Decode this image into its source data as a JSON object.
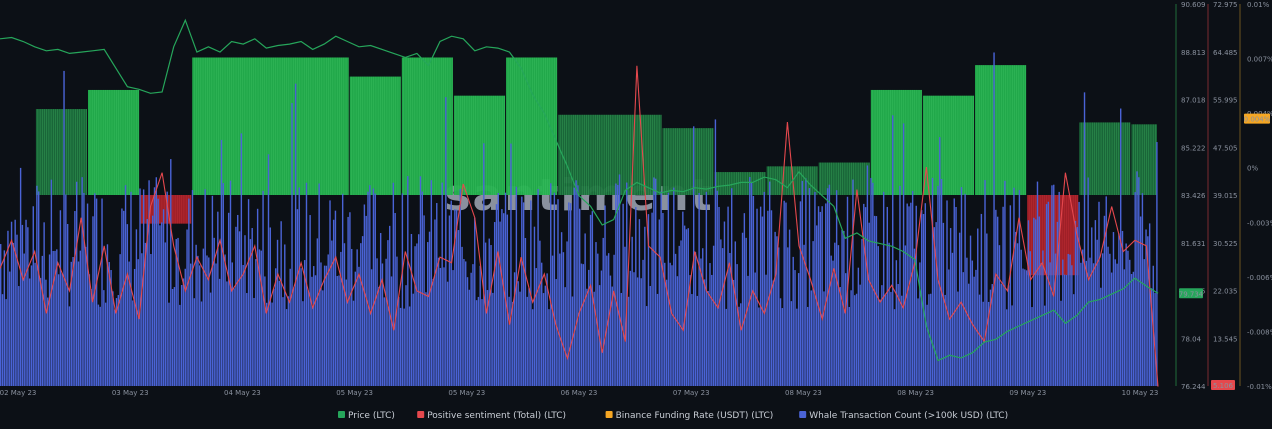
{
  "chart_data": {
    "type": "bar",
    "watermark": "santiment",
    "x_axis": {
      "tick_labels": [
        "02 May 23",
        "03 May 23",
        "04 May 23",
        "05 May 23",
        "05 May 23",
        "06 May 23",
        "07 May 23",
        "08 May 23",
        "08 May 23",
        "09 May 23",
        "10 May 23"
      ],
      "range": [
        0,
        1
      ]
    },
    "axes": {
      "price": {
        "ticks": [
          "90.609",
          "88.813",
          "87.018",
          "85.222",
          "83.426",
          "81.631",
          "79.835",
          "78.04",
          "76.244"
        ],
        "range": [
          76.244,
          90.609
        ],
        "current_value": "79.734",
        "current_color": "#26a65b"
      },
      "sentiment": {
        "ticks": [
          "72.975",
          "64.485",
          "55.995",
          "47.505",
          "39.015",
          "30.525",
          "22.035",
          "13.545",
          "5.106"
        ],
        "range": [
          5.106,
          72.975
        ],
        "current_value": "5.106",
        "current_color": "#e5484d"
      },
      "funding": {
        "ticks": [
          "0.01%",
          "0.007%",
          "0.004%",
          "0%",
          "-0.003%",
          "-0.006%",
          "-0.008%",
          "-0.01%"
        ],
        "range": [
          -0.01,
          0.01
        ],
        "current_value": "0.004%",
        "current_value_num": 0.004,
        "current_color": "#f5a623"
      }
    },
    "series": [
      {
        "name": "Binance Funding Rate (USDT) (LTC)",
        "color": "#f5a623",
        "type": "funding-bars",
        "blocks": [
          {
            "x0": 0.031,
            "x1": 0.076,
            "value": 0.0045
          },
          {
            "x0": 0.076,
            "x1": 0.121,
            "value": 0.0055
          },
          {
            "x0": 0.121,
            "x1": 0.166,
            "value": -0.0015
          },
          {
            "x0": 0.166,
            "x1": 0.302,
            "value": 0.0072
          },
          {
            "x0": 0.302,
            "x1": 0.347,
            "value": 0.0062
          },
          {
            "x0": 0.347,
            "x1": 0.392,
            "value": 0.0072
          },
          {
            "x0": 0.392,
            "x1": 0.437,
            "value": 0.0052
          },
          {
            "x0": 0.437,
            "x1": 0.482,
            "value": 0.0072
          },
          {
            "x0": 0.482,
            "x1": 0.572,
            "value": 0.0042
          },
          {
            "x0": 0.572,
            "x1": 0.617,
            "value": 0.0035
          },
          {
            "x0": 0.617,
            "x1": 0.662,
            "value": 0.0012
          },
          {
            "x0": 0.662,
            "x1": 0.707,
            "value": 0.0015
          },
          {
            "x0": 0.707,
            "x1": 0.752,
            "value": 0.0017
          },
          {
            "x0": 0.752,
            "x1": 0.797,
            "value": 0.0055
          },
          {
            "x0": 0.797,
            "x1": 0.842,
            "value": 0.0052
          },
          {
            "x0": 0.842,
            "x1": 0.887,
            "value": 0.0068
          },
          {
            "x0": 0.887,
            "x1": 0.932,
            "value": -0.0042
          },
          {
            "x0": 0.932,
            "x1": 0.977,
            "value": 0.0038
          },
          {
            "x0": 0.977,
            "x1": 1.022,
            "value": 0.0037
          },
          {
            "x0": 1.022,
            "x1": 1.067,
            "value": 0.0025
          }
        ]
      },
      {
        "name": "Whale Transaction Count (>100k USD) (LTC)",
        "color": "#4a63d6",
        "type": "whale-bars",
        "count": 640,
        "baseline": 0.2,
        "amplitude": 0.35
      },
      {
        "name": "Positive sentiment (Total) (LTC)",
        "color": "#e5484d",
        "type": "sentiment-line",
        "points": [
          [
            0,
            26
          ],
          [
            0.01,
            31
          ],
          [
            0.02,
            24
          ],
          [
            0.03,
            29
          ],
          [
            0.04,
            18
          ],
          [
            0.05,
            27
          ],
          [
            0.06,
            22
          ],
          [
            0.07,
            35
          ],
          [
            0.08,
            20
          ],
          [
            0.09,
            30
          ],
          [
            0.1,
            18
          ],
          [
            0.11,
            25
          ],
          [
            0.12,
            17
          ],
          [
            0.13,
            37
          ],
          [
            0.14,
            43
          ],
          [
            0.15,
            30
          ],
          [
            0.16,
            22
          ],
          [
            0.17,
            28
          ],
          [
            0.18,
            24
          ],
          [
            0.19,
            31
          ],
          [
            0.2,
            22
          ],
          [
            0.21,
            25
          ],
          [
            0.22,
            30
          ],
          [
            0.23,
            18
          ],
          [
            0.24,
            25
          ],
          [
            0.25,
            20
          ],
          [
            0.26,
            27
          ],
          [
            0.27,
            19
          ],
          [
            0.28,
            24
          ],
          [
            0.29,
            28
          ],
          [
            0.3,
            20
          ],
          [
            0.31,
            25
          ],
          [
            0.32,
            18
          ],
          [
            0.33,
            24
          ],
          [
            0.34,
            15
          ],
          [
            0.35,
            29
          ],
          [
            0.36,
            22
          ],
          [
            0.37,
            21
          ],
          [
            0.38,
            28
          ],
          [
            0.39,
            27
          ],
          [
            0.4,
            41
          ],
          [
            0.41,
            35
          ],
          [
            0.42,
            18
          ],
          [
            0.43,
            29
          ],
          [
            0.44,
            16
          ],
          [
            0.45,
            28
          ],
          [
            0.46,
            20
          ],
          [
            0.47,
            25
          ],
          [
            0.48,
            16
          ],
          [
            0.49,
            10
          ],
          [
            0.5,
            18
          ],
          [
            0.51,
            23
          ],
          [
            0.52,
            11
          ],
          [
            0.53,
            22
          ],
          [
            0.54,
            13
          ],
          [
            0.55,
            62
          ],
          [
            0.56,
            30
          ],
          [
            0.57,
            28
          ],
          [
            0.58,
            18
          ],
          [
            0.59,
            15
          ],
          [
            0.6,
            29
          ],
          [
            0.61,
            22
          ],
          [
            0.62,
            19
          ],
          [
            0.63,
            27
          ],
          [
            0.64,
            15
          ],
          [
            0.65,
            22
          ],
          [
            0.66,
            18
          ],
          [
            0.67,
            25
          ],
          [
            0.68,
            52
          ],
          [
            0.69,
            30
          ],
          [
            0.7,
            24
          ],
          [
            0.71,
            17
          ],
          [
            0.72,
            26
          ],
          [
            0.73,
            18
          ],
          [
            0.74,
            40
          ],
          [
            0.75,
            24
          ],
          [
            0.76,
            20
          ],
          [
            0.77,
            23
          ],
          [
            0.78,
            19
          ],
          [
            0.79,
            27
          ],
          [
            0.8,
            44
          ],
          [
            0.81,
            24
          ],
          [
            0.82,
            17
          ],
          [
            0.83,
            20
          ],
          [
            0.84,
            16
          ],
          [
            0.85,
            13
          ],
          [
            0.86,
            25
          ],
          [
            0.87,
            22
          ],
          [
            0.88,
            35
          ],
          [
            0.89,
            24
          ],
          [
            0.9,
            27
          ],
          [
            0.91,
            21
          ],
          [
            0.92,
            43
          ],
          [
            0.93,
            32
          ],
          [
            0.94,
            24
          ],
          [
            0.95,
            28
          ],
          [
            0.96,
            37
          ],
          [
            0.97,
            29
          ],
          [
            0.98,
            31
          ],
          [
            0.99,
            30
          ],
          [
            1.0,
            5
          ]
        ]
      },
      {
        "name": "Price (LTC)",
        "color": "#26a65b",
        "type": "price-line",
        "points": [
          [
            0,
            89.3
          ],
          [
            0.01,
            89.35
          ],
          [
            0.02,
            89.2
          ],
          [
            0.03,
            89.0
          ],
          [
            0.04,
            88.85
          ],
          [
            0.05,
            88.9
          ],
          [
            0.06,
            88.75
          ],
          [
            0.07,
            88.8
          ],
          [
            0.08,
            88.85
          ],
          [
            0.09,
            88.9
          ],
          [
            0.1,
            88.2
          ],
          [
            0.11,
            87.5
          ],
          [
            0.12,
            87.4
          ],
          [
            0.13,
            87.25
          ],
          [
            0.14,
            87.3
          ],
          [
            0.15,
            89.0
          ],
          [
            0.16,
            90.0
          ],
          [
            0.17,
            88.8
          ],
          [
            0.18,
            89.0
          ],
          [
            0.19,
            88.8
          ],
          [
            0.2,
            89.2
          ],
          [
            0.21,
            89.1
          ],
          [
            0.22,
            89.3
          ],
          [
            0.23,
            88.95
          ],
          [
            0.24,
            89.05
          ],
          [
            0.25,
            89.1
          ],
          [
            0.26,
            89.2
          ],
          [
            0.27,
            88.9
          ],
          [
            0.28,
            89.1
          ],
          [
            0.29,
            89.4
          ],
          [
            0.3,
            89.2
          ],
          [
            0.31,
            89.0
          ],
          [
            0.32,
            89.05
          ],
          [
            0.33,
            88.9
          ],
          [
            0.34,
            88.75
          ],
          [
            0.35,
            88.6
          ],
          [
            0.36,
            88.75
          ],
          [
            0.37,
            88.3
          ],
          [
            0.38,
            89.2
          ],
          [
            0.39,
            89.4
          ],
          [
            0.4,
            89.3
          ],
          [
            0.41,
            88.85
          ],
          [
            0.42,
            89.0
          ],
          [
            0.43,
            88.95
          ],
          [
            0.44,
            88.8
          ],
          [
            0.45,
            88.2
          ],
          [
            0.46,
            87.2
          ],
          [
            0.47,
            86.5
          ],
          [
            0.48,
            85.5
          ],
          [
            0.49,
            84.5
          ],
          [
            0.5,
            83.4
          ],
          [
            0.51,
            83.0
          ],
          [
            0.52,
            82.3
          ],
          [
            0.53,
            82.5
          ],
          [
            0.54,
            83.6
          ],
          [
            0.55,
            83.9
          ],
          [
            0.56,
            83.7
          ],
          [
            0.57,
            83.5
          ],
          [
            0.58,
            83.6
          ],
          [
            0.59,
            83.55
          ],
          [
            0.6,
            83.7
          ],
          [
            0.61,
            83.65
          ],
          [
            0.62,
            83.75
          ],
          [
            0.63,
            83.8
          ],
          [
            0.64,
            83.9
          ],
          [
            0.65,
            83.9
          ],
          [
            0.66,
            84.1
          ],
          [
            0.67,
            84.0
          ],
          [
            0.68,
            83.7
          ],
          [
            0.69,
            84.3
          ],
          [
            0.7,
            83.8
          ],
          [
            0.71,
            83.4
          ],
          [
            0.72,
            83.0
          ],
          [
            0.73,
            81.8
          ],
          [
            0.74,
            82.0
          ],
          [
            0.75,
            81.7
          ],
          [
            0.76,
            81.6
          ],
          [
            0.77,
            81.5
          ],
          [
            0.78,
            81.3
          ],
          [
            0.79,
            81.0
          ],
          [
            0.8,
            78.5
          ],
          [
            0.81,
            77.2
          ],
          [
            0.82,
            77.4
          ],
          [
            0.83,
            77.3
          ],
          [
            0.84,
            77.5
          ],
          [
            0.85,
            77.9
          ],
          [
            0.86,
            78.0
          ],
          [
            0.87,
            78.3
          ],
          [
            0.88,
            78.5
          ],
          [
            0.89,
            78.7
          ],
          [
            0.9,
            78.9
          ],
          [
            0.91,
            79.1
          ],
          [
            0.92,
            78.6
          ],
          [
            0.93,
            78.9
          ],
          [
            0.94,
            79.4
          ],
          [
            0.95,
            79.5
          ],
          [
            0.96,
            79.7
          ],
          [
            0.97,
            79.9
          ],
          [
            0.98,
            80.3
          ],
          [
            0.99,
            80.0
          ],
          [
            1.0,
            79.73
          ]
        ]
      }
    ],
    "legend": [
      {
        "label": "Price (LTC)",
        "color": "#26a65b"
      },
      {
        "label": "Positive sentiment (Total) (LTC)",
        "color": "#e5484d"
      },
      {
        "label": "Binance Funding Rate (USDT) (LTC)",
        "color": "#f5a623"
      },
      {
        "label": "Whale Transaction Count (>100k USD) (LTC)",
        "color": "#4a63d6"
      }
    ],
    "legend_placement": "bottom-center",
    "grid": false
  }
}
